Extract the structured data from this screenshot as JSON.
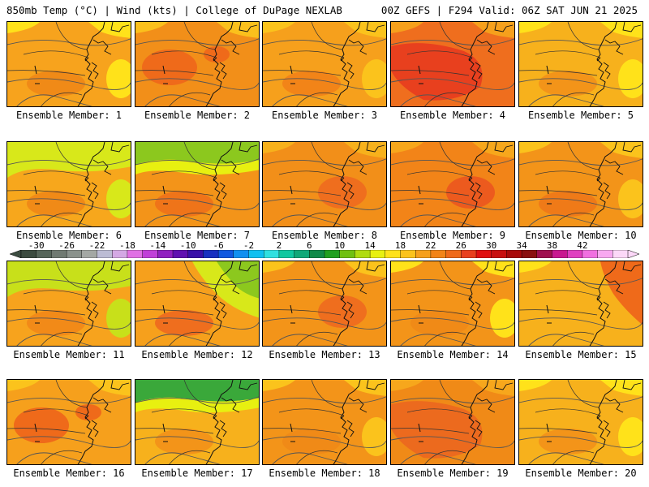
{
  "header": {
    "left": "850mb Temp (°C) | Wind (kts) | College of DuPage NEXLAB",
    "right": "00Z GEFS | F294 Valid: 06Z SAT JUN 21 2025"
  },
  "member_label_prefix": "Ensemble Member: ",
  "members": [
    {
      "label": "Ensemble Member: 1",
      "base": "#f7a31d",
      "hot": "#f08a17",
      "cool": "#ffe21a",
      "scheme": "warm-mixed"
    },
    {
      "label": "Ensemble Member: 2",
      "base": "#f28f19",
      "hot": "#ef6a1a",
      "cool": "#fbc01c",
      "scheme": "hot-west"
    },
    {
      "label": "Ensemble Member: 3",
      "base": "#f6a01c",
      "hot": "#f28418",
      "cool": "#fbc31c",
      "scheme": "warm-mixed"
    },
    {
      "label": "Ensemble Member: 4",
      "base": "#ef6e1e",
      "hot": "#e8401e",
      "cool": "#f6a01c",
      "scheme": "very-hot"
    },
    {
      "label": "Ensemble Member: 5",
      "base": "#f7b11c",
      "hot": "#f39419",
      "cool": "#ffe21a",
      "scheme": "warm-mixed"
    },
    {
      "label": "Ensemble Member: 6",
      "base": "#f7a71c",
      "hot": "#f08a17",
      "cool": "#d8e81a",
      "scheme": "cool-north"
    },
    {
      "label": "Ensemble Member: 7",
      "base": "#f39419",
      "hot": "#ef7419",
      "cool": "#8cc81e",
      "scheme": "green-north"
    },
    {
      "label": "Ensemble Member: 8",
      "base": "#f28f19",
      "hot": "#ef6e1e",
      "cool": "#f7b11c",
      "scheme": "hot-east"
    },
    {
      "label": "Ensemble Member: 9",
      "base": "#f28418",
      "hot": "#ec5a1e",
      "cool": "#f7a71c",
      "scheme": "hot-east"
    },
    {
      "label": "Ensemble Member: 10",
      "base": "#f39419",
      "hot": "#ef7a18",
      "cool": "#fbc31c",
      "scheme": "warm-mixed"
    },
    {
      "label": "Ensemble Member: 11",
      "base": "#f7a31d",
      "hot": "#f28a18",
      "cool": "#c8e01a",
      "scheme": "cool-north"
    },
    {
      "label": "Ensemble Member: 12",
      "base": "#f6a01c",
      "hot": "#ef6e1e",
      "cool": "#8cc81e",
      "scheme": "green-ne"
    },
    {
      "label": "Ensemble Member: 13",
      "base": "#f39419",
      "hot": "#ef6e1e",
      "cool": "#fbc31c",
      "scheme": "hot-east"
    },
    {
      "label": "Ensemble Member: 14",
      "base": "#f39419",
      "hot": "#f08a17",
      "cool": "#ffe21a",
      "scheme": "warm-mixed"
    },
    {
      "label": "Ensemble Member: 15",
      "base": "#f7b11c",
      "hot": "#ef6a1a",
      "cool": "#ffe21a",
      "scheme": "hot-ne"
    },
    {
      "label": "Ensemble Member: 16",
      "base": "#f6a01c",
      "hot": "#ef6a1a",
      "cool": "#fbc31c",
      "scheme": "hot-west"
    },
    {
      "label": "Ensemble Member: 17",
      "base": "#f7b11c",
      "hot": "#f39419",
      "cool": "#3aa83a",
      "scheme": "green-north"
    },
    {
      "label": "Ensemble Member: 18",
      "base": "#f39419",
      "hot": "#f08a17",
      "cool": "#fbc31c",
      "scheme": "warm-mixed"
    },
    {
      "label": "Ensemble Member: 19",
      "base": "#f08a17",
      "hot": "#ec6a1e",
      "cool": "#f7a71c",
      "scheme": "very-hot"
    },
    {
      "label": "Ensemble Member: 20",
      "base": "#f7b11c",
      "hot": "#f39419",
      "cool": "#ffe21a",
      "scheme": "warm-mixed"
    }
  ],
  "colorbar": {
    "tick_labels": [
      "-30",
      "-26",
      "-22",
      "-18",
      "-14",
      "-10",
      "-6",
      "-2",
      "2",
      "6",
      "10",
      "14",
      "18",
      "22",
      "26",
      "30",
      "34",
      "38",
      "42"
    ],
    "colors": [
      "#3c4c40",
      "#56665a",
      "#707a72",
      "#8a928c",
      "#a4a8a4",
      "#bcbcd4",
      "#d4a8e4",
      "#e070e4",
      "#c040d8",
      "#9020c0",
      "#6010b0",
      "#3810a8",
      "#1830c0",
      "#1058e0",
      "#1090f0",
      "#10c0f0",
      "#30e0e0",
      "#10c8a0",
      "#10a878",
      "#108a48",
      "#20a020",
      "#70c010",
      "#b0dc10",
      "#e8f010",
      "#ffe21a",
      "#fbc31c",
      "#f6a01c",
      "#f28418",
      "#ef6a1a",
      "#e8401e",
      "#e01010",
      "#c81010",
      "#a80a0a",
      "#8a1010",
      "#a01050",
      "#c81890",
      "#e040c0",
      "#f070e0",
      "#f8a8f0",
      "#fcd8f8"
    ]
  }
}
